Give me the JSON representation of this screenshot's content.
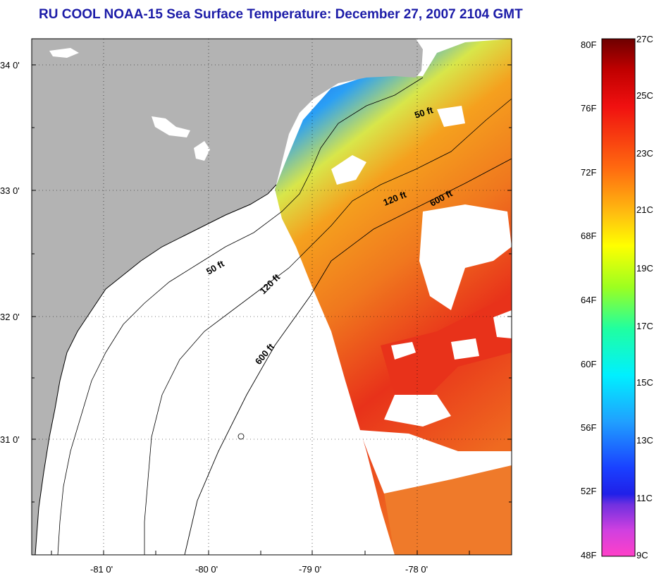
{
  "title": "RU COOL  NOAA-15  Sea Surface Temperature:  December 27, 2007 2104 GMT",
  "map": {
    "lat_labels": [
      "34 0'",
      "33 0'",
      "32 0'",
      "31 0'"
    ],
    "lon_labels": [
      "-81 0'",
      "-80 0'",
      "-79 0'",
      "-78 0'"
    ],
    "contours": [
      "50 ft",
      "120 ft",
      "600 ft",
      "50 ft",
      "120 ft",
      "600 ft"
    ],
    "colors": {
      "land": "#b3b3b3",
      "cloud": "#ffffff",
      "water_cold": "#1a3fe6",
      "water_warm": "#e8321a"
    }
  },
  "colorbar": {
    "fahrenheit_labels": [
      "80F",
      "76F",
      "72F",
      "68F",
      "64F",
      "60F",
      "56F",
      "52F",
      "48F"
    ],
    "celsius_labels": [
      "27C",
      "25C",
      "23C",
      "21C",
      "19C",
      "17C",
      "15C",
      "13C",
      "11C",
      "9C"
    ]
  }
}
